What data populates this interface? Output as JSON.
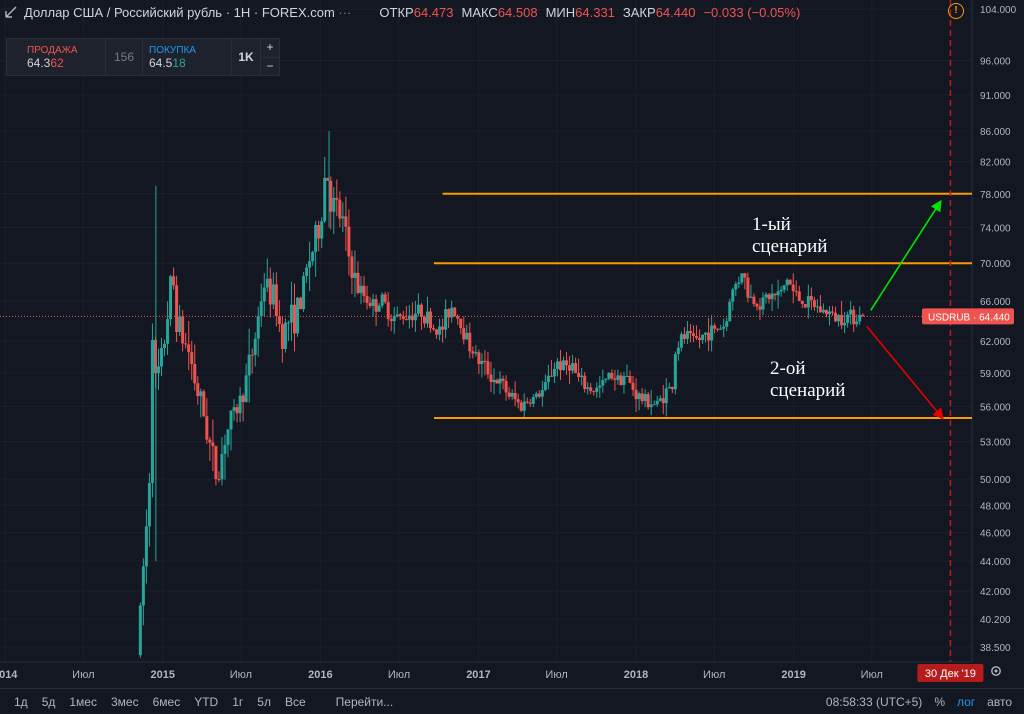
{
  "header": {
    "symbol": "Доллар США / Российский рубль",
    "interval": "1Н",
    "exchange": "FOREX.com",
    "ohlc": [
      {
        "label": "ОТКР",
        "value": "64.473"
      },
      {
        "label": "МАКС",
        "value": "64.508"
      },
      {
        "label": "МИН",
        "value": "64.331"
      },
      {
        "label": "ЗАКР",
        "value": "64.440"
      },
      {
        "label": "",
        "value": "−0.033 (−0.05%)"
      }
    ]
  },
  "trade_panel": {
    "sell_label": "ПРОДАЖА",
    "sell_price_main": "64.3",
    "sell_price_tail": "62",
    "spread": "156",
    "buy_label": "ПОКУПКА",
    "buy_price_main": "64.5",
    "buy_price_tail": "18",
    "quantity": "1K",
    "plus": "+",
    "minus": "−"
  },
  "annotations": {
    "scenario1": [
      "1-ый",
      "сценарий"
    ],
    "scenario2": [
      "2-ой",
      "сценарий"
    ]
  },
  "toolbar": {
    "ranges": [
      "1д",
      "5д",
      "1мес",
      "3мес",
      "6мес",
      "YTD",
      "1г",
      "5л",
      "Все"
    ],
    "goto": "Перейти...",
    "time": "08:58:33 (UTC+5)",
    "percent": "%",
    "log": "лог",
    "auto": "авто"
  },
  "colors": {
    "background": "#131722",
    "up": "#26a69a",
    "down": "#ef5350",
    "levels": "#ff9800",
    "arrow_up": "#00e600",
    "arrow_down": "#e60000",
    "marker": "#b71c1c"
  },
  "chart_data": {
    "type": "candlestick",
    "symbol": "USDRUB",
    "last_price_label": "USDRUB · 64.440",
    "last_price": 64.44,
    "y_scale": "log",
    "y_ticks": [
      38.5,
      40.2,
      42,
      44,
      46,
      48,
      50,
      53,
      56,
      59,
      62,
      66,
      70,
      74,
      78,
      82,
      86,
      91,
      96,
      104
    ],
    "y_tick_labels": [
      "38.500",
      "40.200",
      "42.000",
      "44.000",
      "46.000",
      "48.000",
      "50.000",
      "53.000",
      "56.000",
      "59.000",
      "62.000",
      "66.000",
      "70.000",
      "74.000",
      "78.000",
      "82.000",
      "86.000",
      "91.000",
      "96.000",
      "104.000"
    ],
    "x_ticks": [
      {
        "date": "2014-01-01",
        "label": "2014"
      },
      {
        "date": "2014-07-01",
        "label": "Июл"
      },
      {
        "date": "2015-01-01",
        "label": "2015"
      },
      {
        "date": "2015-07-01",
        "label": "Июл"
      },
      {
        "date": "2016-01-01",
        "label": "2016"
      },
      {
        "date": "2016-07-01",
        "label": "Июл"
      },
      {
        "date": "2017-01-01",
        "label": "2017"
      },
      {
        "date": "2017-07-01",
        "label": "Июл"
      },
      {
        "date": "2018-01-01",
        "label": "2018"
      },
      {
        "date": "2018-07-01",
        "label": "Июл"
      },
      {
        "date": "2019-01-01",
        "label": "2019"
      },
      {
        "date": "2019-07-01",
        "label": "Июл"
      }
    ],
    "x_range": [
      "2013-12-20",
      "2020-02-18"
    ],
    "y_range": [
      37.6,
      105.5
    ],
    "marker": {
      "date": "2019-12-30",
      "label": "30 Дек '19"
    },
    "price_path": [
      [
        "2014-11-10",
        38.0
      ],
      [
        "2014-11-25",
        44.0
      ],
      [
        "2014-12-05",
        48.0
      ],
      [
        "2014-12-10",
        52.0
      ],
      [
        "2014-12-16",
        66.0
      ],
      [
        "2014-12-22",
        58.0
      ],
      [
        "2015-01-05",
        60.0
      ],
      [
        "2015-01-20",
        65.0
      ],
      [
        "2015-01-30",
        69.0
      ],
      [
        "2015-02-10",
        64.0
      ],
      [
        "2015-02-25",
        62.0
      ],
      [
        "2015-03-10",
        61.0
      ],
      [
        "2015-03-25",
        58.0
      ],
      [
        "2015-04-15",
        55.0
      ],
      [
        "2015-05-01",
        52.0
      ],
      [
        "2015-05-15",
        50.0
      ],
      [
        "2015-06-01",
        53.5
      ],
      [
        "2015-06-20",
        55.0
      ],
      [
        "2015-07-10",
        57.0
      ],
      [
        "2015-07-30",
        60.0
      ],
      [
        "2015-08-20",
        65.0
      ],
      [
        "2015-08-28",
        68.0
      ],
      [
        "2015-09-10",
        67.0
      ],
      [
        "2015-09-25",
        66.0
      ],
      [
        "2015-10-10",
        62.5
      ],
      [
        "2015-10-25",
        64.0
      ],
      [
        "2015-11-10",
        64.5
      ],
      [
        "2015-11-25",
        66.0
      ],
      [
        "2015-12-10",
        70.0
      ],
      [
        "2015-12-25",
        72.0
      ],
      [
        "2016-01-10",
        75.0
      ],
      [
        "2016-01-21",
        82.0
      ],
      [
        "2016-02-01",
        77.0
      ],
      [
        "2016-02-15",
        76.0
      ],
      [
        "2016-03-01",
        74.5
      ],
      [
        "2016-03-15",
        70.5
      ],
      [
        "2016-04-01",
        67.5
      ],
      [
        "2016-04-20",
        66.5
      ],
      [
        "2016-05-10",
        65.5
      ],
      [
        "2016-05-30",
        66.0
      ],
      [
        "2016-06-15",
        64.8
      ],
      [
        "2016-07-01",
        64.2
      ],
      [
        "2016-07-20",
        64.5
      ],
      [
        "2016-08-10",
        64.8
      ],
      [
        "2016-08-30",
        65.0
      ],
      [
        "2016-09-15",
        64.0
      ],
      [
        "2016-10-01",
        63.0
      ],
      [
        "2016-10-15",
        63.0
      ],
      [
        "2016-10-25",
        64.5
      ],
      [
        "2016-11-08",
        65.5
      ],
      [
        "2016-11-20",
        64.5
      ],
      [
        "2016-12-05",
        63.0
      ],
      [
        "2016-12-20",
        61.5
      ],
      [
        "2017-01-10",
        60.0
      ],
      [
        "2017-01-25",
        59.5
      ],
      [
        "2017-02-10",
        58.5
      ],
      [
        "2017-03-01",
        58.0
      ],
      [
        "2017-03-20",
        57.0
      ],
      [
        "2017-04-05",
        56.5
      ],
      [
        "2017-04-15",
        56.0
      ],
      [
        "2017-05-01",
        56.5
      ],
      [
        "2017-05-20",
        56.8
      ],
      [
        "2017-06-10",
        57.5
      ],
      [
        "2017-06-25",
        59.0
      ],
      [
        "2017-07-10",
        60.0
      ],
      [
        "2017-07-25",
        59.5
      ],
      [
        "2017-08-10",
        60.0
      ],
      [
        "2017-08-25",
        58.5
      ],
      [
        "2017-09-10",
        57.8
      ],
      [
        "2017-09-25",
        57.5
      ],
      [
        "2017-10-10",
        57.5
      ],
      [
        "2017-10-25",
        58.0
      ],
      [
        "2017-11-10",
        59.0
      ],
      [
        "2017-11-25",
        58.5
      ],
      [
        "2017-12-10",
        58.8
      ],
      [
        "2017-12-25",
        58.0
      ],
      [
        "2018-01-10",
        57.0
      ],
      [
        "2018-01-25",
        56.5
      ],
      [
        "2018-02-10",
        56.5
      ],
      [
        "2018-02-25",
        56.0
      ],
      [
        "2018-03-10",
        57.0
      ],
      [
        "2018-03-25",
        57.5
      ],
      [
        "2018-04-05",
        58.0
      ],
      [
        "2018-04-09",
        61.0
      ],
      [
        "2018-04-20",
        62.0
      ],
      [
        "2018-05-05",
        62.5
      ],
      [
        "2018-05-20",
        62.0
      ],
      [
        "2018-06-05",
        62.2
      ],
      [
        "2018-06-25",
        63.0
      ],
      [
        "2018-07-10",
        63.0
      ],
      [
        "2018-07-25",
        63.5
      ],
      [
        "2018-08-05",
        63.5
      ],
      [
        "2018-08-10",
        66.0
      ],
      [
        "2018-08-20",
        67.0
      ],
      [
        "2018-09-05",
        68.5
      ],
      [
        "2018-09-11",
        69.5
      ],
      [
        "2018-09-25",
        66.5
      ],
      [
        "2018-10-10",
        66.0
      ],
      [
        "2018-10-25",
        65.8
      ],
      [
        "2018-11-10",
        66.5
      ],
      [
        "2018-11-25",
        66.5
      ],
      [
        "2018-12-10",
        66.8
      ],
      [
        "2018-12-25",
        68.5
      ],
      [
        "2019-01-05",
        67.0
      ],
      [
        "2019-01-20",
        66.3
      ],
      [
        "2019-02-05",
        65.8
      ],
      [
        "2019-02-25",
        65.5
      ],
      [
        "2019-03-15",
        65.0
      ],
      [
        "2019-03-30",
        64.8
      ],
      [
        "2019-04-15",
        64.3
      ],
      [
        "2019-04-30",
        64.5
      ],
      [
        "2019-05-15",
        64.5
      ],
      [
        "2019-05-30",
        64.5
      ],
      [
        "2019-06-10",
        64.44
      ]
    ],
    "levels": [
      {
        "value": 78.0,
        "from": "2016-10-10",
        "to": "2020-02-18"
      },
      {
        "value": 70.0,
        "from": "2016-09-20",
        "to": "2020-02-18"
      },
      {
        "value": 55.0,
        "from": "2016-09-20",
        "to": "2020-02-18"
      }
    ],
    "scenarios": [
      {
        "name": "1-ый сценарий",
        "from": [
          "2019-06-10",
          64.44
        ],
        "to": [
          "2019-12-30",
          78.0
        ]
      },
      {
        "name": "2-ой сценарий",
        "from": [
          "2019-06-10",
          64.44
        ],
        "to": [
          "2019-12-30",
          55.0
        ]
      }
    ]
  }
}
